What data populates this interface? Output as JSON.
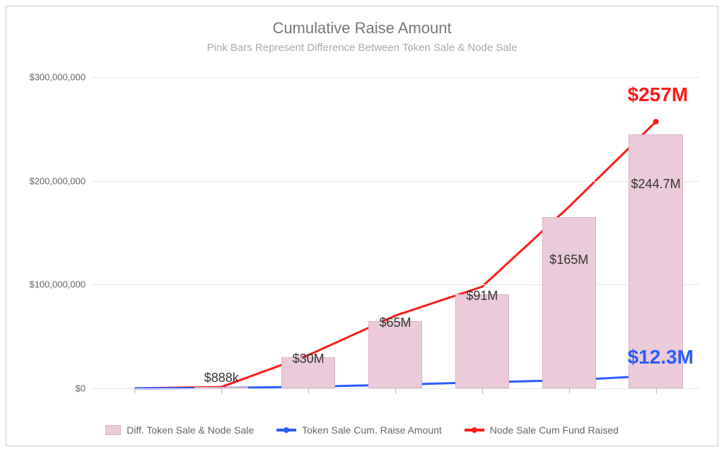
{
  "title": "Cumulative Raise Amount",
  "subtitle": "Pink Bars Represent Difference Between Token Sale & Node Sale",
  "y_axis": {
    "min": 0,
    "max": 300000000,
    "ticks": [
      {
        "value": 0,
        "label": "$0"
      },
      {
        "value": 100000000,
        "label": "$100,000,000"
      },
      {
        "value": 200000000,
        "label": "$200,000,000"
      },
      {
        "value": 300000000,
        "label": "$300,000,000"
      }
    ],
    "grid_color": "#e5e5e5",
    "label_color": "#666666",
    "label_fontsize": 13
  },
  "x_categories_count": 7,
  "bars": {
    "color_fill": "#ebcbd9",
    "color_border": "#d8b3c6",
    "width_ratio": 0.62,
    "values": [
      0,
      888000,
      30000000,
      65000000,
      91000000,
      165000000,
      244700000
    ],
    "labels": [
      "",
      "$888k",
      "$30M",
      "$65M",
      "$91M",
      "$165M",
      "$244.7M"
    ]
  },
  "series_token": {
    "color": "#2b5cff",
    "width": 3,
    "values": [
      0,
      400000,
      1500000,
      3500000,
      5800000,
      7800000,
      12300000
    ],
    "end_label": "$12.3M"
  },
  "series_node": {
    "color": "#ff1a1a",
    "width": 3,
    "values": [
      0,
      1300000,
      32000000,
      70000000,
      98000000,
      175000000,
      257000000
    ],
    "end_label": "$257M"
  },
  "legend": {
    "diff": "Diff. Token Sale & Node Sale",
    "token": "Token Sale Cum. Raise Amount",
    "node": "Node Sale Cum Fund Raised"
  },
  "colors": {
    "title": "#777777",
    "subtitle": "#aaaaaa",
    "border": "#cccccc",
    "bar_label": "#333333",
    "end_label_fontsize": 28
  }
}
